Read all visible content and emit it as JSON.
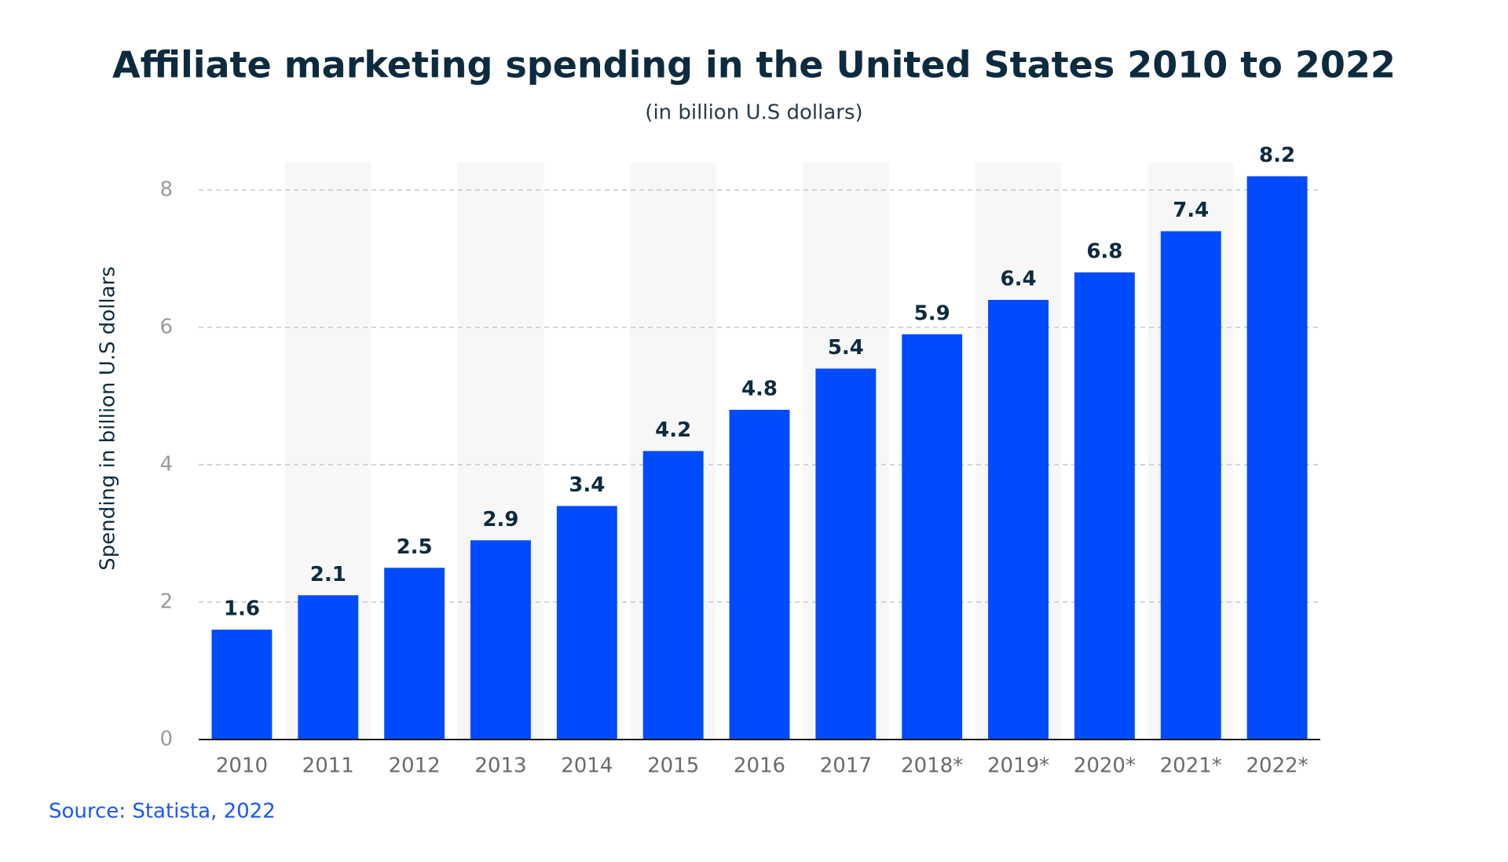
{
  "chart_data": {
    "type": "bar",
    "title": "Affiliate marketing spending in the United States 2010 to 2022",
    "subtitle": "(in billion U.S dollars)",
    "y_axis_label": "Spending in billion U.S dollars",
    "source": "Source: Statista, 2022",
    "categories": [
      "2010",
      "2011",
      "2012",
      "2013",
      "2014",
      "2015",
      "2016",
      "2017",
      "2018*",
      "2019*",
      "2020*",
      "2021*",
      "2022*"
    ],
    "values": [
      1.6,
      2.1,
      2.5,
      2.9,
      3.4,
      4.2,
      4.8,
      5.4,
      5.9,
      6.4,
      6.8,
      7.4,
      8.2
    ],
    "color": "#004bff",
    "ylim": [
      0,
      8.4
    ],
    "yticks": [
      0,
      2,
      4,
      6,
      8
    ],
    "grid": true
  }
}
